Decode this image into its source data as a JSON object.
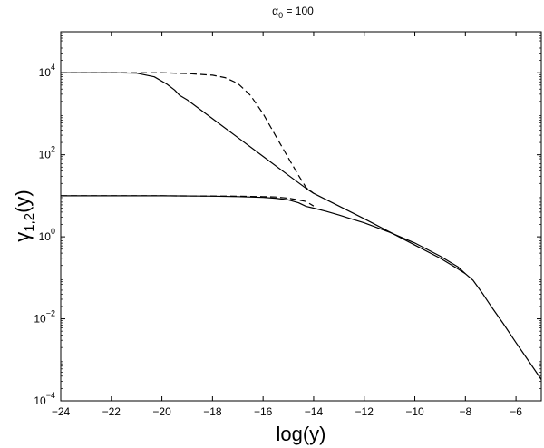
{
  "chart_data": {
    "type": "line",
    "title": "α0 = 100",
    "title_parts": {
      "symbol": "α",
      "subscript": "0",
      "rest": " = 100"
    },
    "xlabel": "log(y)",
    "ylabel": "γ1,2(y)",
    "ylabel_parts": {
      "symbol": "γ",
      "subscript": "1,2",
      "rest": "(y)"
    },
    "xlim": [
      -24,
      -5
    ],
    "ylim_log10": [
      -4,
      5
    ],
    "yscale": "log",
    "grid": false,
    "x_ticks": [
      {
        "value": -24,
        "label": "−24"
      },
      {
        "value": -22,
        "label": "−22"
      },
      {
        "value": -20,
        "label": "−20"
      },
      {
        "value": -18,
        "label": "−18"
      },
      {
        "value": -16,
        "label": "−16"
      },
      {
        "value": -14,
        "label": "−14"
      },
      {
        "value": -12,
        "label": "−12"
      },
      {
        "value": -10,
        "label": "−10"
      },
      {
        "value": -8,
        "label": "−8"
      },
      {
        "value": -6,
        "label": "−6"
      }
    ],
    "y_ticks": [
      {
        "exp": -4,
        "base": "10",
        "sup": "−4"
      },
      {
        "exp": -2,
        "base": "10",
        "sup": "−2"
      },
      {
        "exp": 0,
        "base": "10",
        "sup": "0"
      },
      {
        "exp": 2,
        "base": "10",
        "sup": "2"
      },
      {
        "exp": 4,
        "base": "10",
        "sup": "4"
      }
    ],
    "series": [
      {
        "style": "solid",
        "x": [
          -24,
          -22,
          -21,
          -20.3,
          -19.8,
          -19.5,
          -19.3,
          -19.0,
          -18,
          -17,
          -16,
          -15,
          -14.3,
          -14.0,
          -13,
          -12,
          -11,
          -10,
          -9,
          -8.3,
          -8.0,
          -7.7,
          -7.3,
          -7,
          -6.5,
          -6,
          -5.5,
          -5
        ],
        "y_log10": [
          4,
          4,
          3.99,
          3.9,
          3.72,
          3.58,
          3.45,
          3.34,
          2.88,
          2.42,
          1.96,
          1.5,
          1.18,
          1.06,
          0.75,
          0.44,
          0.12,
          -0.2,
          -0.52,
          -0.78,
          -0.9,
          -1.06,
          -1.4,
          -1.68,
          -2.12,
          -2.58,
          -3.03,
          -3.48
        ]
      },
      {
        "style": "dashed",
        "x": [
          -24,
          -22,
          -20,
          -19,
          -18,
          -17.5,
          -17,
          -16.5,
          -16,
          -15.5,
          -15,
          -14.6,
          -14.3,
          -14.0
        ],
        "y_log10": [
          4,
          4,
          4,
          3.98,
          3.94,
          3.88,
          3.74,
          3.45,
          3.0,
          2.46,
          1.92,
          1.5,
          1.2,
          1.06
        ]
      },
      {
        "style": "solid",
        "x": [
          -24,
          -22,
          -20,
          -18,
          -17,
          -16,
          -15.5,
          -15,
          -14.6,
          -14.3,
          -14.0,
          -13.5,
          -13,
          -12,
          -11,
          -10,
          -9,
          -8.3,
          -8.0
        ],
        "y_log10": [
          1,
          1,
          1,
          0.99,
          0.98,
          0.96,
          0.94,
          0.9,
          0.83,
          0.74,
          0.7,
          0.62,
          0.53,
          0.34,
          0.11,
          -0.15,
          -0.47,
          -0.73,
          -0.9
        ]
      },
      {
        "style": "dashed",
        "x": [
          -24,
          -20,
          -17,
          -16,
          -15.5,
          -15,
          -14.6,
          -14.3,
          -14.0
        ],
        "y_log10": [
          1,
          1,
          0.99,
          0.98,
          0.97,
          0.94,
          0.9,
          0.86,
          0.75
        ]
      }
    ]
  }
}
